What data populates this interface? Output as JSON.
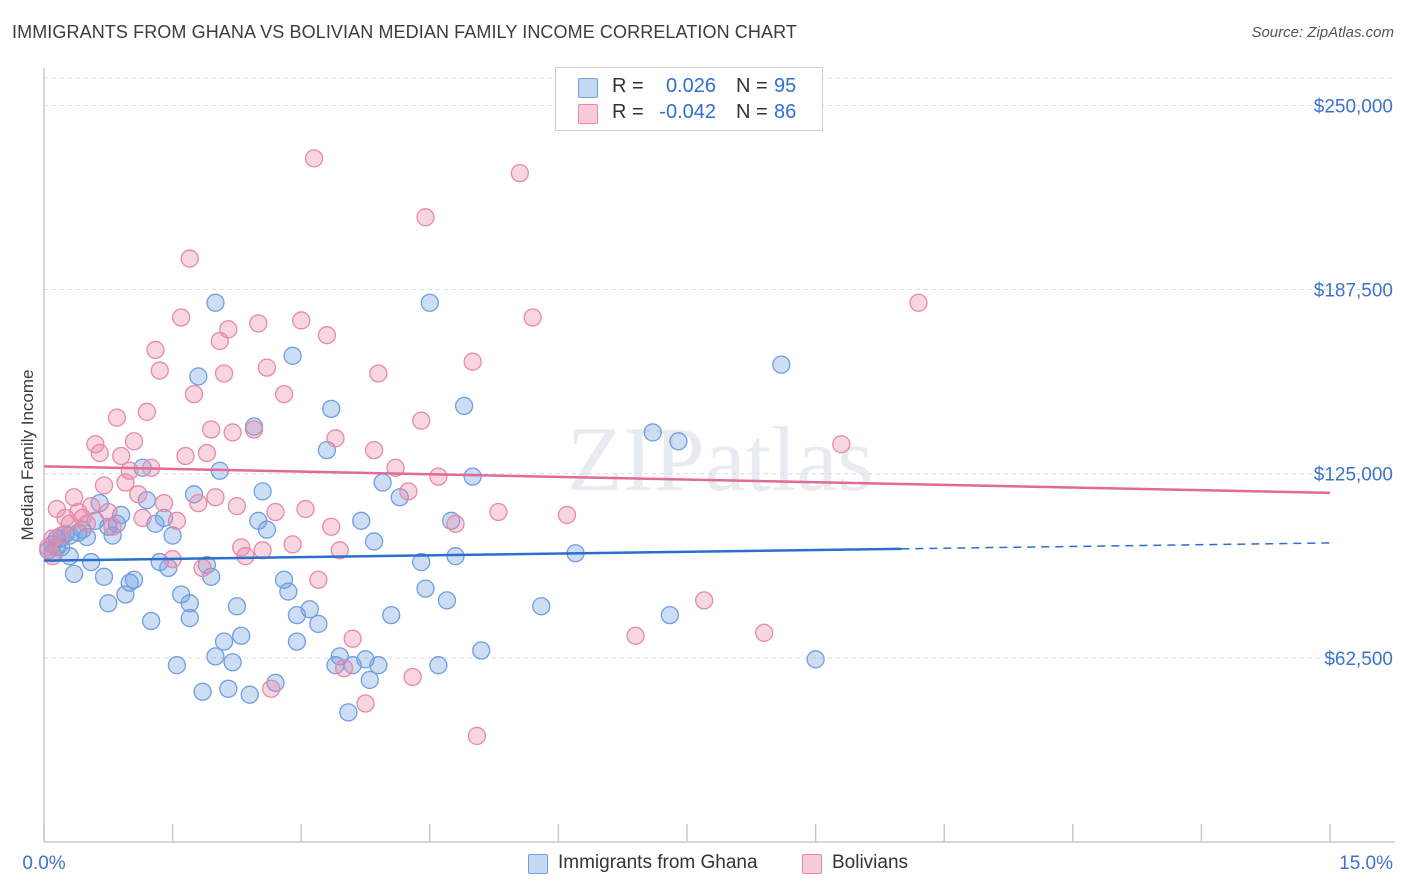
{
  "title": "IMMIGRANTS FROM GHANA VS BOLIVIAN MEDIAN FAMILY INCOME CORRELATION CHART",
  "source": "Source: ZipAtlas.com",
  "watermark": "ZIPatlas",
  "legend": {
    "rows": [
      {
        "r_label": "R =",
        "r_value": "0.026",
        "n_label": "N =",
        "n_value": "95"
      },
      {
        "r_label": "R =",
        "r_value": "-0.042",
        "n_label": "N =",
        "n_value": "86"
      }
    ]
  },
  "chart_data": {
    "type": "scatter",
    "title": "IMMIGRANTS FROM GHANA VS BOLIVIAN MEDIAN FAMILY INCOME CORRELATION CHART",
    "xlabel": "",
    "ylabel": "Median Family Income",
    "xlim": [
      0,
      15
    ],
    "ylim": [
      0,
      262000
    ],
    "x_tick_labels": [
      "0.0%",
      "15.0%"
    ],
    "y_ticks": [
      62500,
      125000,
      187500,
      250000
    ],
    "y_tick_labels": [
      "$62,500",
      "$125,000",
      "$187,500",
      "$250,000"
    ],
    "grid": "horizontal dashed",
    "legend_position": "top-center",
    "colors": {
      "ghana": "#6f9fe0",
      "bolivia": "#e889a8",
      "ghana_line": "#2a6fcf",
      "bolivia_line": "#e06b94",
      "axis_text": "#3d74c8"
    },
    "series": [
      {
        "name": "Immigrants from Ghana",
        "r": 0.026,
        "n": 95,
        "trend": {
          "x": [
            0,
            10,
            15
          ],
          "y": [
            95500,
            99500,
            101500
          ],
          "solid_until": 10
        },
        "points": [
          [
            0.05,
            99000
          ],
          [
            0.1,
            101000
          ],
          [
            0.1,
            98000
          ],
          [
            0.15,
            100000
          ],
          [
            0.2,
            103000
          ],
          [
            0.25,
            104500
          ],
          [
            0.3,
            104000
          ],
          [
            0.35,
            91000
          ],
          [
            0.4,
            105000
          ],
          [
            0.45,
            106000
          ],
          [
            0.5,
            103500
          ],
          [
            0.55,
            95000
          ],
          [
            0.6,
            109000
          ],
          [
            0.65,
            115000
          ],
          [
            0.7,
            90000
          ],
          [
            0.75,
            81000
          ],
          [
            0.75,
            107000
          ],
          [
            0.8,
            104000
          ],
          [
            0.85,
            108000
          ],
          [
            0.9,
            111000
          ],
          [
            0.95,
            84000
          ],
          [
            1.0,
            88000
          ],
          [
            1.05,
            89000
          ],
          [
            1.15,
            127000
          ],
          [
            1.2,
            116000
          ],
          [
            1.25,
            75000
          ],
          [
            1.3,
            108000
          ],
          [
            1.35,
            95000
          ],
          [
            1.4,
            110000
          ],
          [
            1.45,
            93000
          ],
          [
            1.5,
            104000
          ],
          [
            1.55,
            60000
          ],
          [
            1.6,
            84000
          ],
          [
            1.7,
            76000
          ],
          [
            1.7,
            81000
          ],
          [
            1.75,
            118000
          ],
          [
            1.8,
            158000
          ],
          [
            1.85,
            51000
          ],
          [
            1.9,
            94000
          ],
          [
            1.95,
            90000
          ],
          [
            2.0,
            63000
          ],
          [
            2.0,
            183000
          ],
          [
            2.05,
            126000
          ],
          [
            2.1,
            68000
          ],
          [
            2.15,
            52000
          ],
          [
            2.2,
            61000
          ],
          [
            2.25,
            80000
          ],
          [
            2.3,
            70000
          ],
          [
            2.4,
            50000
          ],
          [
            2.45,
            141000
          ],
          [
            2.5,
            109000
          ],
          [
            2.55,
            119000
          ],
          [
            2.6,
            106000
          ],
          [
            2.7,
            54000
          ],
          [
            2.8,
            89000
          ],
          [
            2.85,
            85000
          ],
          [
            2.9,
            165000
          ],
          [
            2.95,
            77000
          ],
          [
            2.95,
            68000
          ],
          [
            3.1,
            79000
          ],
          [
            3.2,
            74000
          ],
          [
            3.3,
            133000
          ],
          [
            3.35,
            147000
          ],
          [
            3.4,
            60000
          ],
          [
            3.45,
            63000
          ],
          [
            3.55,
            44000
          ],
          [
            3.6,
            60000
          ],
          [
            3.7,
            109000
          ],
          [
            3.75,
            62000
          ],
          [
            3.8,
            55000
          ],
          [
            3.85,
            102000
          ],
          [
            3.9,
            60000
          ],
          [
            3.95,
            122000
          ],
          [
            4.05,
            77000
          ],
          [
            4.15,
            117000
          ],
          [
            4.4,
            95000
          ],
          [
            4.45,
            86000
          ],
          [
            4.5,
            183000
          ],
          [
            4.6,
            60000
          ],
          [
            4.7,
            82000
          ],
          [
            4.75,
            109000
          ],
          [
            4.8,
            97000
          ],
          [
            4.9,
            148000
          ],
          [
            5.0,
            124000
          ],
          [
            5.1,
            65000
          ],
          [
            5.8,
            80000
          ],
          [
            6.2,
            98000
          ],
          [
            7.1,
            139000
          ],
          [
            7.3,
            77000
          ],
          [
            7.4,
            136000
          ],
          [
            8.6,
            162000
          ],
          [
            9.0,
            62000
          ],
          [
            0.2,
            100000
          ],
          [
            0.3,
            97000
          ],
          [
            0.15,
            103000
          ]
        ]
      },
      {
        "name": "Bolivians",
        "r": -0.042,
        "n": 86,
        "trend": {
          "x": [
            0,
            15
          ],
          "y": [
            127500,
            118500
          ]
        },
        "points": [
          [
            0.05,
            100000
          ],
          [
            0.1,
            97000
          ],
          [
            0.1,
            103000
          ],
          [
            0.15,
            113000
          ],
          [
            0.2,
            104000
          ],
          [
            0.25,
            110000
          ],
          [
            0.3,
            108000
          ],
          [
            0.35,
            117000
          ],
          [
            0.4,
            112000
          ],
          [
            0.45,
            110000
          ],
          [
            0.5,
            108000
          ],
          [
            0.55,
            114000
          ],
          [
            0.6,
            135000
          ],
          [
            0.65,
            132000
          ],
          [
            0.7,
            121000
          ],
          [
            0.75,
            112000
          ],
          [
            0.8,
            107000
          ],
          [
            0.85,
            144000
          ],
          [
            0.9,
            131000
          ],
          [
            0.95,
            122000
          ],
          [
            1.0,
            126000
          ],
          [
            1.05,
            136000
          ],
          [
            1.1,
            118000
          ],
          [
            1.15,
            110000
          ],
          [
            1.2,
            146000
          ],
          [
            1.25,
            127000
          ],
          [
            1.3,
            167000
          ],
          [
            1.35,
            160000
          ],
          [
            1.4,
            115000
          ],
          [
            1.5,
            96000
          ],
          [
            1.55,
            109000
          ],
          [
            1.6,
            178000
          ],
          [
            1.65,
            131000
          ],
          [
            1.7,
            198000
          ],
          [
            1.75,
            152000
          ],
          [
            1.8,
            115000
          ],
          [
            1.85,
            93000
          ],
          [
            1.9,
            132000
          ],
          [
            1.95,
            140000
          ],
          [
            2.0,
            117000
          ],
          [
            2.05,
            170000
          ],
          [
            2.1,
            159000
          ],
          [
            2.15,
            174000
          ],
          [
            2.2,
            139000
          ],
          [
            2.25,
            114000
          ],
          [
            2.3,
            100000
          ],
          [
            2.35,
            97000
          ],
          [
            2.45,
            140000
          ],
          [
            2.5,
            176000
          ],
          [
            2.55,
            99000
          ],
          [
            2.6,
            161000
          ],
          [
            2.65,
            52000
          ],
          [
            2.7,
            112000
          ],
          [
            2.8,
            152000
          ],
          [
            2.9,
            101000
          ],
          [
            3.0,
            177000
          ],
          [
            3.05,
            113000
          ],
          [
            3.15,
            232000
          ],
          [
            3.2,
            89000
          ],
          [
            3.3,
            172000
          ],
          [
            3.35,
            107000
          ],
          [
            3.4,
            137000
          ],
          [
            3.45,
            99000
          ],
          [
            3.5,
            59000
          ],
          [
            3.6,
            69000
          ],
          [
            3.75,
            47000
          ],
          [
            3.85,
            133000
          ],
          [
            3.9,
            159000
          ],
          [
            4.1,
            127000
          ],
          [
            4.25,
            119000
          ],
          [
            4.3,
            56000
          ],
          [
            4.4,
            143000
          ],
          [
            4.45,
            212000
          ],
          [
            4.6,
            124000
          ],
          [
            4.8,
            108000
          ],
          [
            5.0,
            163000
          ],
          [
            5.05,
            36000
          ],
          [
            5.3,
            112000
          ],
          [
            5.55,
            227000
          ],
          [
            5.7,
            178000
          ],
          [
            6.1,
            111000
          ],
          [
            6.9,
            70000
          ],
          [
            7.7,
            82000
          ],
          [
            8.4,
            71000
          ],
          [
            9.3,
            135000
          ],
          [
            10.2,
            183000
          ]
        ]
      }
    ]
  }
}
